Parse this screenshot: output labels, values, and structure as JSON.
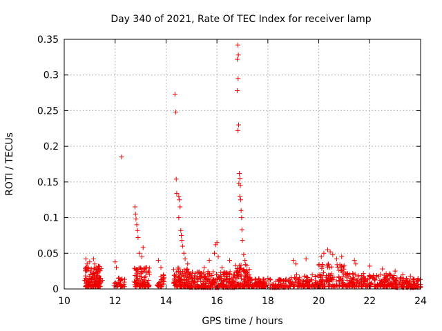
{
  "chart_data": {
    "type": "scatter",
    "title": "Day 340 of 2021, Rate Of TEC Index for receiver lamp",
    "xlabel": "GPS time / hours",
    "ylabel": "ROTI / TECUs",
    "xlim": [
      10,
      24
    ],
    "ylim": [
      0,
      0.35
    ],
    "x_ticks": [
      10,
      12,
      14,
      16,
      18,
      20,
      22,
      24
    ],
    "x_tick_labels": [
      "10",
      "12",
      "14",
      "16",
      "18",
      "20",
      "22",
      "24"
    ],
    "y_ticks": [
      0,
      0.05,
      0.1,
      0.15,
      0.2,
      0.25,
      0.3,
      0.35
    ],
    "y_tick_labels": [
      "0",
      "0.05",
      "0.1",
      "0.15",
      "0.2",
      "0.25",
      "0.3",
      "0.35"
    ],
    "grid": true,
    "marker": "+",
    "color": "#ee0000",
    "series": [
      {
        "name": "ROTI",
        "points": [
          [
            10.85,
            0.042
          ],
          [
            10.9,
            0.035
          ],
          [
            10.95,
            0.03
          ],
          [
            11.0,
            0.038
          ],
          [
            11.05,
            0.025
          ],
          [
            11.1,
            0.02
          ],
          [
            11.15,
            0.042
          ],
          [
            11.2,
            0.035
          ],
          [
            11.25,
            0.03
          ],
          [
            11.3,
            0.022
          ],
          [
            11.4,
            0.015
          ],
          [
            11.5,
            0.012
          ],
          [
            12.0,
            0.038
          ],
          [
            12.05,
            0.03
          ],
          [
            12.25,
            0.185
          ],
          [
            12.78,
            0.115
          ],
          [
            12.8,
            0.105
          ],
          [
            12.82,
            0.098
          ],
          [
            12.85,
            0.09
          ],
          [
            12.88,
            0.082
          ],
          [
            12.9,
            0.072
          ],
          [
            12.95,
            0.05
          ],
          [
            13.05,
            0.045
          ],
          [
            13.1,
            0.058
          ],
          [
            13.2,
            0.03
          ],
          [
            13.3,
            0.025
          ],
          [
            13.7,
            0.04
          ],
          [
            13.8,
            0.03
          ],
          [
            13.9,
            0.02
          ],
          [
            14.35,
            0.273
          ],
          [
            14.38,
            0.248
          ],
          [
            14.4,
            0.154
          ],
          [
            14.42,
            0.134
          ],
          [
            14.5,
            0.13
          ],
          [
            14.52,
            0.125
          ],
          [
            14.55,
            0.115
          ],
          [
            14.5,
            0.1
          ],
          [
            14.58,
            0.082
          ],
          [
            14.6,
            0.075
          ],
          [
            14.62,
            0.068
          ],
          [
            14.65,
            0.06
          ],
          [
            14.7,
            0.05
          ],
          [
            14.75,
            0.042
          ],
          [
            14.85,
            0.035
          ],
          [
            15.5,
            0.03
          ],
          [
            15.7,
            0.04
          ],
          [
            15.9,
            0.05
          ],
          [
            15.95,
            0.062
          ],
          [
            16.0,
            0.065
          ],
          [
            16.05,
            0.045
          ],
          [
            16.2,
            0.03
          ],
          [
            16.5,
            0.04
          ],
          [
            16.82,
            0.342
          ],
          [
            16.84,
            0.328
          ],
          [
            16.8,
            0.322
          ],
          [
            16.83,
            0.295
          ],
          [
            16.8,
            0.278
          ],
          [
            16.85,
            0.23
          ],
          [
            16.82,
            0.222
          ],
          [
            16.88,
            0.162
          ],
          [
            16.9,
            0.155
          ],
          [
            16.86,
            0.148
          ],
          [
            16.92,
            0.145
          ],
          [
            16.9,
            0.13
          ],
          [
            16.93,
            0.125
          ],
          [
            16.95,
            0.11
          ],
          [
            16.97,
            0.1
          ],
          [
            16.98,
            0.083
          ],
          [
            17.0,
            0.068
          ],
          [
            17.05,
            0.048
          ],
          [
            17.1,
            0.04
          ],
          [
            18.0,
            0.015
          ],
          [
            18.5,
            0.012
          ],
          [
            19.0,
            0.04
          ],
          [
            19.1,
            0.035
          ],
          [
            19.5,
            0.042
          ],
          [
            20.1,
            0.045
          ],
          [
            20.2,
            0.05
          ],
          [
            20.35,
            0.055
          ],
          [
            20.45,
            0.052
          ],
          [
            20.55,
            0.048
          ],
          [
            20.7,
            0.042
          ],
          [
            20.9,
            0.045
          ],
          [
            21.4,
            0.04
          ],
          [
            21.45,
            0.035
          ],
          [
            22.0,
            0.032
          ],
          [
            22.5,
            0.028
          ],
          [
            23.0,
            0.025
          ],
          [
            23.3,
            0.02
          ],
          [
            23.6,
            0.018
          ],
          [
            23.9,
            0.015
          ]
        ],
        "clusters": [
          {
            "x_range": [
              10.8,
              11.45
            ],
            "y_range": [
              0.003,
              0.032
            ],
            "count": 130
          },
          {
            "x_range": [
              11.95,
              12.4
            ],
            "y_range": [
              0.003,
              0.016
            ],
            "count": 30
          },
          {
            "x_range": [
              12.75,
              13.35
            ],
            "y_range": [
              0.003,
              0.03
            ],
            "count": 90
          },
          {
            "x_range": [
              13.65,
              13.95
            ],
            "y_range": [
              0.003,
              0.02
            ],
            "count": 25
          },
          {
            "x_range": [
              14.3,
              14.9
            ],
            "y_range": [
              0.003,
              0.03
            ],
            "count": 100
          },
          {
            "x_range": [
              14.9,
              16.7
            ],
            "y_range": [
              0.002,
              0.025
            ],
            "count": 260
          },
          {
            "x_range": [
              16.7,
              17.3
            ],
            "y_range": [
              0.003,
              0.035
            ],
            "count": 110
          },
          {
            "x_range": [
              17.3,
              17.95
            ],
            "y_range": [
              0.003,
              0.015
            ],
            "count": 80
          },
          {
            "x_range": [
              18.0,
              18.9
            ],
            "y_range": [
              0.002,
              0.014
            ],
            "count": 70
          },
          {
            "x_range": [
              18.9,
              20.0
            ],
            "y_range": [
              0.003,
              0.02
            ],
            "count": 100
          },
          {
            "x_range": [
              20.0,
              21.0
            ],
            "y_range": [
              0.003,
              0.035
            ],
            "count": 120
          },
          {
            "x_range": [
              21.0,
              22.0
            ],
            "y_range": [
              0.003,
              0.022
            ],
            "count": 100
          },
          {
            "x_range": [
              22.0,
              23.0
            ],
            "y_range": [
              0.003,
              0.022
            ],
            "count": 110
          },
          {
            "x_range": [
              23.0,
              24.0
            ],
            "y_range": [
              0.002,
              0.016
            ],
            "count": 110
          }
        ]
      }
    ]
  }
}
